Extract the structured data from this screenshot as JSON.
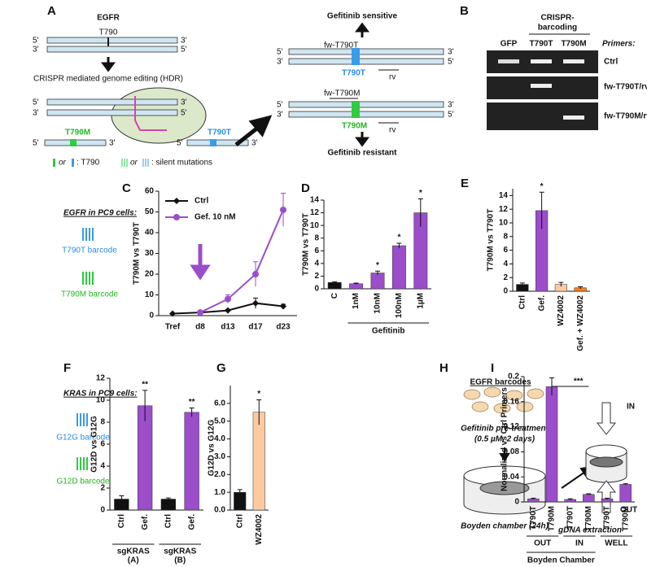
{
  "panel_a": {
    "letter": "A",
    "gene": "EGFR",
    "site": "T790",
    "five": "5'",
    "three": "3'",
    "editing": "CRISPR mediated genome editing (HDR)",
    "mut": "T790M",
    "wt": "T790T",
    "or": "or",
    "key_site": ": T790",
    "key_silent": ": silent mutations",
    "sensitive": "Gefitinib sensitive",
    "resistant": "Gefitinib resistant",
    "fw_wt": "fw-T790T",
    "fw_mut": "fw-T790M",
    "rv": "rv"
  },
  "panel_b": {
    "letter": "B",
    "heading": [
      "CRISPR-",
      "barcoding"
    ],
    "lanes": [
      "GFP",
      "T790T",
      "T790M"
    ],
    "primers": "Primers:",
    "rows": [
      "Ctrl",
      "fw-T790T/rv",
      "fw-T790M/rv"
    ]
  },
  "panel_c": {
    "heading": "EGFR in PC9 cells:",
    "barcodes": [
      "T790T barcode",
      "T790M barcode"
    ]
  },
  "panel_f": {
    "heading": "KRAS in PC9 cells:",
    "barcodes": [
      "G12G barcode",
      "G12D barcode"
    ]
  },
  "panel_h": {
    "letter": "H",
    "barcodes": "EGFR barcodes",
    "pretreatment": "Gefitinib pre-treatment",
    "dose": "(0.5 µM, 2 days)",
    "chamber": "Boyden chamber (24h)",
    "extraction": "gDNA extraction",
    "in": "IN",
    "out": "OUT"
  },
  "chart_data": [
    {
      "type": "line",
      "letter": "C",
      "ylabel": "T790M vs T790T",
      "categories": [
        "Tref",
        "d8",
        "d13",
        "d17",
        "d23"
      ],
      "series": [
        {
          "name": "Ctrl",
          "color": "#111111",
          "values": [
            1,
            1.5,
            2.5,
            6,
            4.5
          ],
          "errors": [
            0.2,
            0.3,
            0.5,
            2.5,
            1
          ]
        },
        {
          "name": "Gef. 10 nM",
          "color": "#9b4dca",
          "values": [
            null,
            1.5,
            8,
            20,
            51
          ],
          "errors": [
            null,
            0.3,
            2,
            6,
            8
          ]
        }
      ],
      "ylim": [
        0,
        60
      ],
      "yticks": [
        0,
        10,
        20,
        30,
        40,
        50,
        60
      ],
      "legend": "upper left"
    },
    {
      "type": "bar",
      "letter": "D",
      "ylabel": "T790M vs T790T",
      "xlabel": "Gefitinib",
      "categories": [
        "C",
        "1nM",
        "10nM",
        "100nM",
        "1µM"
      ],
      "values": [
        1,
        0.8,
        2.5,
        6.8,
        12
      ],
      "errors": [
        0.1,
        0.1,
        0.3,
        0.4,
        2.2
      ],
      "significance": [
        null,
        null,
        "*",
        "*",
        "*"
      ],
      "colors": [
        "#111111",
        "#9b4dca",
        "#9b4dca",
        "#9b4dca",
        "#9b4dca"
      ],
      "ylim": [
        0,
        14
      ],
      "yticks": [
        0,
        2,
        4,
        6,
        8,
        10,
        12,
        14
      ]
    },
    {
      "type": "bar",
      "letter": "E",
      "ylabel": "T790M vs T790T",
      "categories": [
        "Ctrl",
        "Gef.",
        "WZ4002",
        "Gef. + WZ4002"
      ],
      "values": [
        1,
        11.8,
        1,
        0.5
      ],
      "errors": [
        0.2,
        2.7,
        0.3,
        0.15
      ],
      "significance": [
        null,
        "*",
        null,
        null
      ],
      "colors": [
        "#111111",
        "#9b4dca",
        "#fcc9a0",
        "#f47c20"
      ],
      "ylim": [
        0,
        15
      ],
      "yticks": [
        0,
        2,
        4,
        6,
        8,
        10,
        12,
        14
      ]
    },
    {
      "type": "bar",
      "letter": "F",
      "ylabel": "G12D vs G12G",
      "categories": [
        "Ctrl",
        "Gef.",
        "Ctrl",
        "Gef."
      ],
      "values": [
        1,
        9.5,
        1,
        8.9
      ],
      "errors": [
        0.3,
        1.4,
        0.1,
        0.4
      ],
      "significance": [
        null,
        "**",
        null,
        "**"
      ],
      "colors": [
        "#111111",
        "#9b4dca",
        "#111111",
        "#9b4dca"
      ],
      "groups": [
        [
          "sgKRAS",
          "(A)"
        ],
        [
          "sgKRAS",
          "(B)"
        ]
      ],
      "ylim": [
        0,
        12
      ],
      "yticks": [
        0,
        2,
        4,
        6,
        8,
        10,
        12
      ]
    },
    {
      "type": "bar",
      "letter": "G",
      "ylabel": "G12D vs G12G",
      "categories": [
        "Ctrl",
        "WZ4002"
      ],
      "values": [
        1,
        5.5
      ],
      "errors": [
        0.15,
        0.7
      ],
      "significance": [
        null,
        "*"
      ],
      "colors": [
        "#111111",
        "#fcc9a0"
      ],
      "ylim": [
        0,
        7
      ],
      "yticks": [
        {
          "value": 0,
          "label": "0.0"
        },
        {
          "value": 1,
          "label": "1.0"
        },
        {
          "value": 2,
          "label": "2.0"
        },
        {
          "value": 3,
          "label": "3.0"
        },
        {
          "value": 4,
          "label": "4.0"
        },
        {
          "value": 5,
          "label": "5.0"
        },
        {
          "value": 6,
          "label": "6.0"
        }
      ]
    },
    {
      "type": "bar",
      "letter": "I",
      "ylabel": "Normalized vs Ctrl Primers",
      "xlabel": "Boyden Chamber",
      "categories": [
        "T790T",
        "T790M",
        "T790T",
        "T790M",
        "T790T",
        "T790M"
      ],
      "values": [
        0.005,
        0.184,
        0.004,
        0.012,
        0.005,
        0.028
      ],
      "errors": [
        0.001,
        0.014,
        0.001,
        0.001,
        0.001,
        0.001
      ],
      "colors": [
        "#9b4dca",
        "#9b4dca",
        "#9b4dca",
        "#9b4dca",
        "#9b4dca",
        "#9b4dca"
      ],
      "groups": [
        [
          "OUT"
        ],
        [
          "IN"
        ],
        [
          "WELL"
        ]
      ],
      "comparison": "***",
      "ylim": [
        0,
        0.2
      ],
      "yticks": [
        0,
        0.04,
        0.08,
        0.12,
        0.16,
        0.2
      ]
    }
  ]
}
